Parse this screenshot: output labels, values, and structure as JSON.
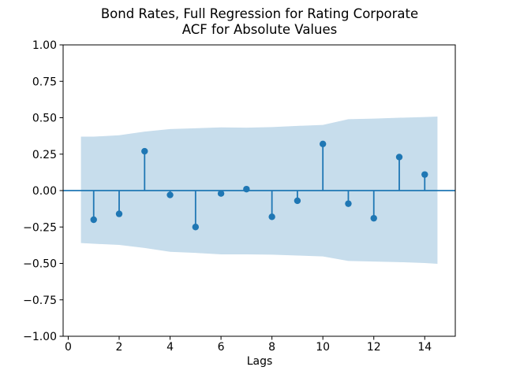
{
  "figure": {
    "title_line1": "Bond Rates, Full Regression for Rating Corporate",
    "title_line2": "ACF for Absolute Values",
    "xlabel": "Lags"
  },
  "chart_data": {
    "type": "stem",
    "title": "Bond Rates, Full Regression for Rating Corporate\nACF for Absolute Values",
    "xlabel": "Lags",
    "ylabel": "",
    "grid": false,
    "legend": "none",
    "xlim": [
      -0.2,
      15.2
    ],
    "ylim": [
      -1.0,
      1.0
    ],
    "xticks": [
      0,
      2,
      4,
      6,
      8,
      10,
      12,
      14
    ],
    "xticklabels": [
      "0",
      "2",
      "4",
      "6",
      "8",
      "10",
      "12",
      "14"
    ],
    "yticks": [
      1.0,
      0.75,
      0.5,
      0.25,
      0.0,
      -0.25,
      -0.5,
      -0.75,
      -1.0
    ],
    "yticklabels": [
      "1.00",
      "0.75",
      "0.50",
      "0.25",
      "0.00",
      "−0.25",
      "−0.50",
      "−0.75",
      "−1.00"
    ],
    "lags": [
      1,
      2,
      3,
      4,
      5,
      6,
      7,
      8,
      9,
      10,
      11,
      12,
      13,
      14
    ],
    "acf_values": [
      -0.2,
      -0.16,
      0.27,
      -0.03,
      -0.25,
      -0.02,
      0.01,
      -0.18,
      -0.07,
      0.32,
      -0.09,
      -0.19,
      0.23,
      0.11
    ],
    "confidence_band": {
      "x": [
        0.5,
        1,
        2,
        3,
        4,
        5,
        6,
        7,
        8,
        9,
        10,
        11,
        12,
        13,
        14,
        14.5
      ],
      "upper": [
        0.37,
        0.37,
        0.38,
        0.405,
        0.422,
        0.428,
        0.434,
        0.432,
        0.436,
        0.444,
        0.451,
        0.49,
        0.494,
        0.5,
        0.505,
        0.508
      ],
      "lower": [
        -0.36,
        -0.365,
        -0.373,
        -0.394,
        -0.42,
        -0.428,
        -0.438,
        -0.438,
        -0.44,
        -0.446,
        -0.452,
        -0.483,
        -0.487,
        -0.491,
        -0.497,
        -0.503
      ]
    },
    "baseline_value": 0.0,
    "colors": {
      "stem": "#1f77b4",
      "marker": "#1f77b4",
      "baseline": "#1f77b4",
      "band": "#c7ddec",
      "axis": "#000000",
      "text": "#000000",
      "background": "#ffffff"
    }
  }
}
